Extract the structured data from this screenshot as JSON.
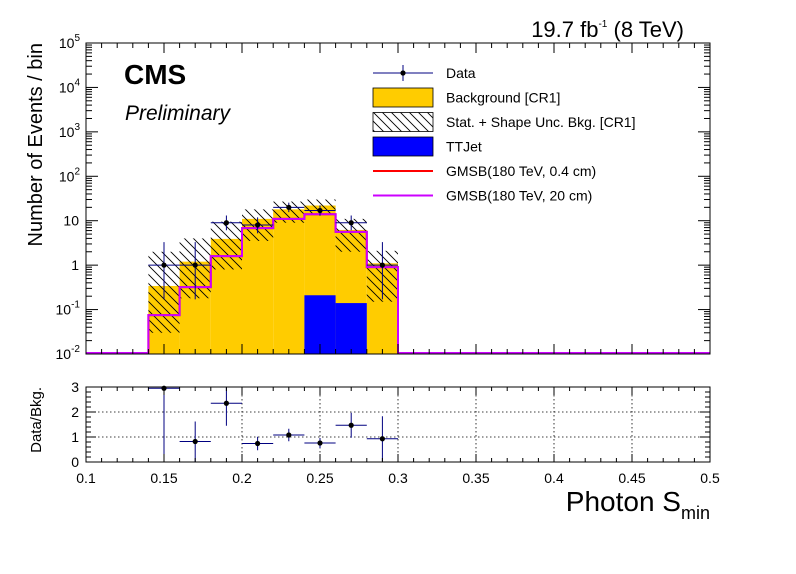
{
  "header": {
    "lumi_value": "19.7 fb",
    "lumi_exponent": "-1",
    "lumi_energy": " (8 TeV)",
    "experiment": "CMS",
    "status": "Preliminary"
  },
  "colors": {
    "background": "#ffcc00",
    "ttjet": "#0000ff",
    "gmsb_04": "#ff0000",
    "gmsb_20": "#cc00ff",
    "data": "#000000",
    "uncertainty_hatch": "#000000",
    "ratio_errors": "#000080"
  },
  "chart_data": [
    {
      "type": "bar",
      "ylabel": "Number of Events / bin",
      "yscale": "log",
      "ylim": [
        0.01,
        100000
      ],
      "xlim": [
        0.1,
        0.5
      ],
      "y_tick_labels": [
        {
          "base": "10",
          "exp": "-2"
        },
        {
          "base": "10",
          "exp": "-1"
        },
        {
          "base": "1",
          "exp": ""
        },
        {
          "base": "10",
          "exp": ""
        },
        {
          "base": "10",
          "exp": "2"
        },
        {
          "base": "10",
          "exp": "3"
        },
        {
          "base": "10",
          "exp": "4"
        },
        {
          "base": "10",
          "exp": "5"
        }
      ],
      "bin_edges": [
        0.14,
        0.16,
        0.18,
        0.2,
        0.22,
        0.24,
        0.26,
        0.28,
        0.3
      ],
      "legend_position": "top-right",
      "legend": [
        {
          "label": "Data",
          "style": "marker"
        },
        {
          "label": "Background [CR1]",
          "style": "fill-background"
        },
        {
          "label": "Stat. + Shape Unc. Bkg. [CR1]",
          "style": "hatch"
        },
        {
          "label": "TTJet",
          "style": "fill-ttjet"
        },
        {
          "label": "GMSB(180 TeV, 0.4 cm)",
          "style": "line-gmsb04"
        },
        {
          "label": "GMSB(180 TeV, 20 cm)",
          "style": "line-gmsb20"
        }
      ],
      "series": [
        {
          "name": "Background [CR1]",
          "values": [
            0.34,
            1.2,
            3.9,
            11,
            18,
            22,
            6.2,
            1.1
          ]
        },
        {
          "name": "Stat. + Shape Unc. Bkg. [CR1]",
          "low": [
            0.03,
            0.18,
            0.8,
            3.5,
            9,
            14,
            2.0,
            0.15
          ],
          "high": [
            2.0,
            4.0,
            9.5,
            18,
            27,
            30,
            11,
            2.1
          ]
        },
        {
          "name": "TTJet",
          "values": [
            0,
            0,
            0,
            0,
            0,
            0.21,
            0.14,
            0
          ]
        },
        {
          "name": "GMSB(180 TeV, 0.4 cm)",
          "values": [
            0.075,
            0.32,
            1.6,
            6.8,
            11,
            14,
            5.6,
            0.9
          ]
        },
        {
          "name": "GMSB(180 TeV, 20 cm)",
          "values": [
            0.075,
            0.32,
            1.6,
            6.8,
            11,
            14,
            5.6,
            0.9
          ]
        },
        {
          "name": "Data",
          "x": [
            0.15,
            0.17,
            0.19,
            0.21,
            0.23,
            0.25,
            0.27,
            0.29
          ],
          "y": [
            1,
            1,
            9,
            8,
            20,
            17,
            9,
            1
          ],
          "y_err_low": [
            0.83,
            0.83,
            2.9,
            2.8,
            4.4,
            4.1,
            2.9,
            0.83
          ],
          "y_err_high": [
            2.3,
            2.3,
            4.1,
            3.9,
            5.5,
            5.2,
            4.1,
            2.3
          ]
        }
      ]
    },
    {
      "type": "scatter",
      "xlabel": "Photon S",
      "xlabel_subscript": "min",
      "ylabel": "Data/Bkg.",
      "xlim": [
        0.1,
        0.5
      ],
      "ylim": [
        0,
        3
      ],
      "x_ticks": [
        "0.1",
        "0.15",
        "0.2",
        "0.25",
        "0.3",
        "0.35",
        "0.4",
        "0.45",
        "0.5"
      ],
      "y_ticks": [
        "0",
        "1",
        "2",
        "3"
      ],
      "grid": true,
      "series": [
        {
          "x": [
            0.15,
            0.17,
            0.19,
            0.21,
            0.23,
            0.25,
            0.27,
            0.29
          ],
          "y": [
            2.95,
            0.82,
            2.35,
            0.74,
            1.08,
            0.76,
            1.47,
            0.93
          ],
          "y_err": [
            3.0,
            0.8,
            0.9,
            0.27,
            0.25,
            0.2,
            0.5,
            0.9
          ],
          "x_err": 0.01
        }
      ]
    }
  ]
}
